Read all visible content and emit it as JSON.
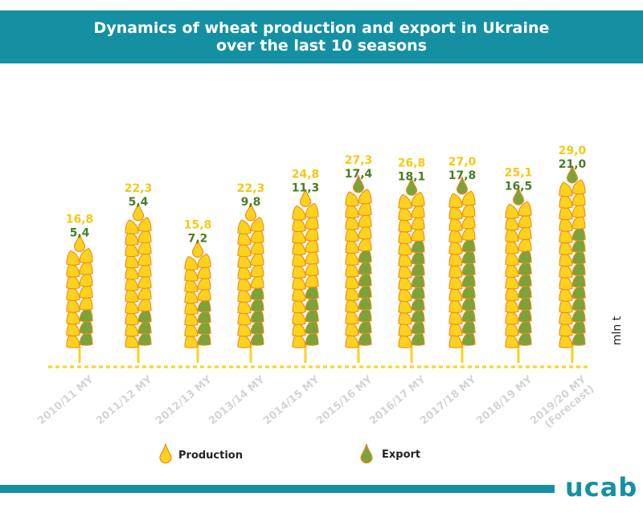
{
  "header": {
    "title_line1": "Dynamics of wheat production and export in Ukraine",
    "title_line2": "over the last 10 seasons"
  },
  "colors": {
    "header_bg": "#1590a2",
    "production": "#fbd21d",
    "export": "#7aa33a",
    "outline": "#f08a1c",
    "production_label": "#f3c914",
    "export_label": "#4a7d24",
    "axis_label": "#d4d4d4"
  },
  "legend": {
    "production": "Production",
    "export": "Export",
    "production_icon": "yellow-drop-icon",
    "export_icon": "green-drop-icon"
  },
  "unit_label": "mln t",
  "logo": "ucab",
  "chart_data": {
    "type": "bar",
    "title": "Dynamics of wheat production and export in Ukraine over the last 10 seasons",
    "ylabel": "mln t",
    "categories": [
      "2010/11 MY",
      "2011/12 MY",
      "2012/13 MY",
      "2013/14 MY",
      "2014/15 MY",
      "2015/16 MY",
      "2016/17 MY",
      "2017/18 MY",
      "2018/19 MY",
      "2019/20 MY (Forecast)"
    ],
    "series": [
      {
        "name": "Production",
        "values": [
          16.8,
          22.3,
          15.8,
          22.3,
          24.8,
          27.3,
          26.8,
          27.0,
          25.1,
          29.0
        ],
        "labels": [
          "16,8",
          "22,3",
          "15,8",
          "22,3",
          "24,8",
          "27,3",
          "26,8",
          "27,0",
          "25,1",
          "29,0"
        ]
      },
      {
        "name": "Export",
        "values": [
          5.4,
          5.4,
          7.2,
          9.8,
          11.3,
          17.4,
          18.1,
          17.8,
          16.5,
          21.0
        ],
        "labels": [
          "5,4",
          "5,4",
          "7,2",
          "9,8",
          "11,3",
          "17,4",
          "18,1",
          "17,8",
          "16,5",
          "21,0"
        ]
      }
    ]
  }
}
